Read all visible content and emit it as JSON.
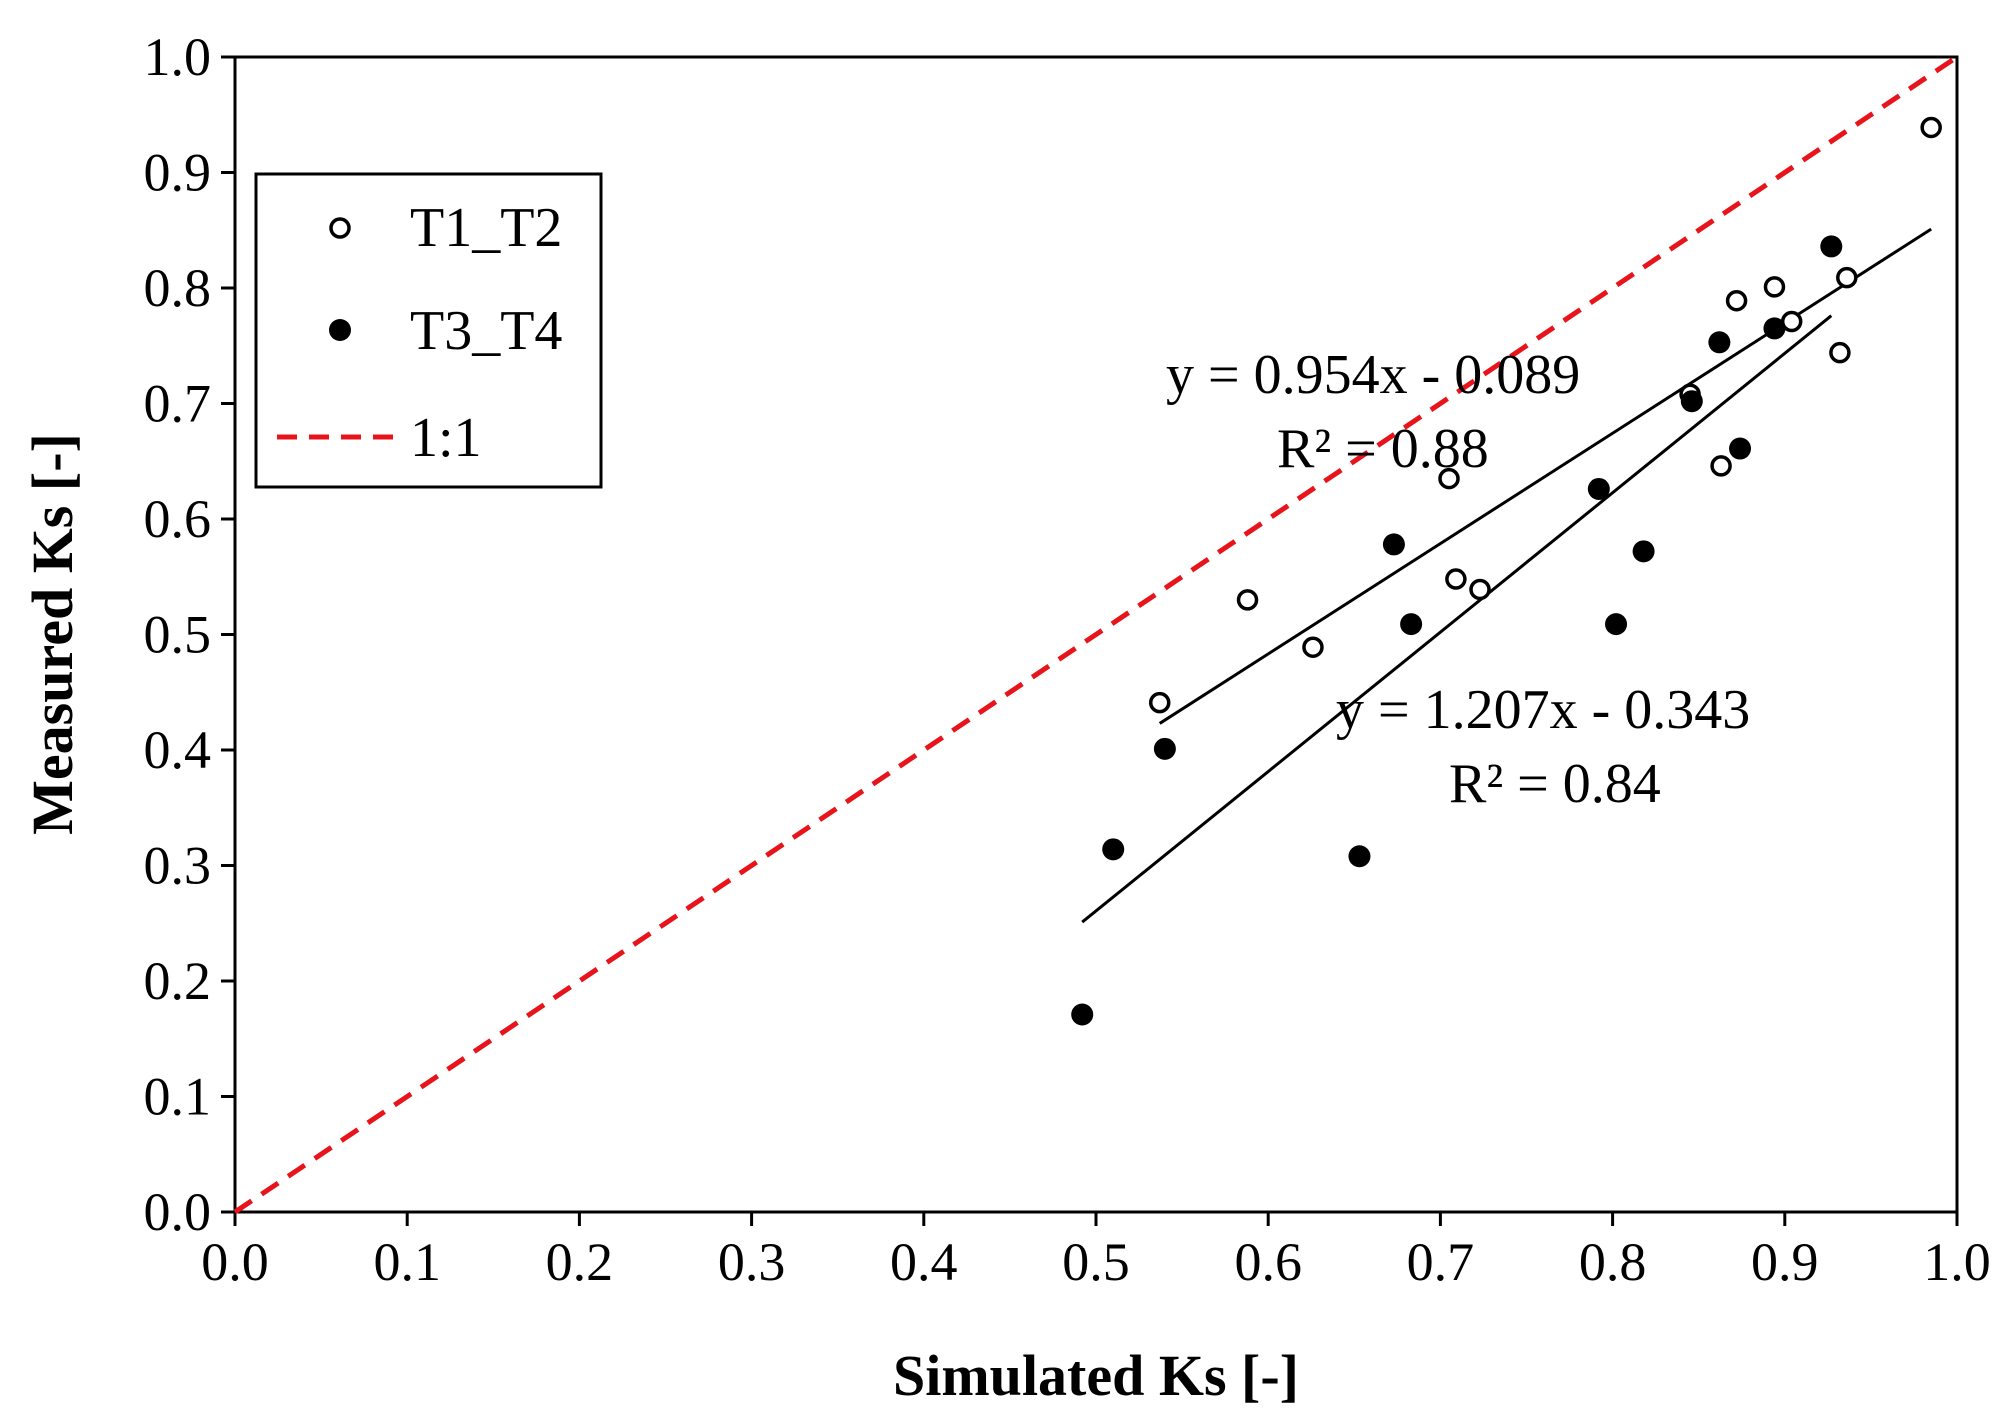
{
  "chart_data": {
    "type": "scatter",
    "title": "",
    "xlabel": "Simulated Ks [-]",
    "ylabel": "Measured Ks [-]",
    "xlim": [
      0.0,
      1.0
    ],
    "ylim": [
      0.0,
      1.0
    ],
    "xticks": [
      "0.0",
      "0.1",
      "0.2",
      "0.3",
      "0.4",
      "0.5",
      "0.6",
      "0.7",
      "0.8",
      "0.9",
      "1.0"
    ],
    "yticks": [
      "0.0",
      "0.1",
      "0.2",
      "0.3",
      "0.4",
      "0.5",
      "0.6",
      "0.7",
      "0.8",
      "0.9",
      "1.0"
    ],
    "grid": false,
    "legend_position": "top-left",
    "series": [
      {
        "name": "T1_T2",
        "marker": "open-circle",
        "points": [
          [
            0.537,
            0.441
          ],
          [
            0.588,
            0.53
          ],
          [
            0.626,
            0.489
          ],
          [
            0.705,
            0.635
          ],
          [
            0.709,
            0.548
          ],
          [
            0.723,
            0.539
          ],
          [
            0.845,
            0.708
          ],
          [
            0.863,
            0.646
          ],
          [
            0.872,
            0.789
          ],
          [
            0.894,
            0.801
          ],
          [
            0.904,
            0.771
          ],
          [
            0.932,
            0.744
          ],
          [
            0.936,
            0.809
          ],
          [
            0.985,
            0.939
          ]
        ]
      },
      {
        "name": "T3_T4",
        "marker": "filled-circle",
        "points": [
          [
            0.492,
            0.171
          ],
          [
            0.51,
            0.314
          ],
          [
            0.54,
            0.401
          ],
          [
            0.653,
            0.308
          ],
          [
            0.673,
            0.578
          ],
          [
            0.683,
            0.509
          ],
          [
            0.792,
            0.626
          ],
          [
            0.802,
            0.509
          ],
          [
            0.818,
            0.572
          ],
          [
            0.846,
            0.702
          ],
          [
            0.862,
            0.753
          ],
          [
            0.874,
            0.661
          ],
          [
            0.894,
            0.765
          ],
          [
            0.927,
            0.836
          ]
        ]
      }
    ],
    "reference_line": {
      "name": "1:1",
      "x": [
        0.0,
        1.0
      ],
      "y": [
        0.0,
        1.0
      ],
      "color": "#e8141b",
      "style": "dashed"
    },
    "trendlines": [
      {
        "series": "T1_T2",
        "x": [
          0.537,
          0.985
        ],
        "y": [
          0.423,
          0.851
        ],
        "equation": "y = 0.954x - 0.089",
        "r2": "R² = 0.88"
      },
      {
        "series": "T3_T4",
        "x": [
          0.492,
          0.927
        ],
        "y": [
          0.251,
          0.776
        ],
        "equation": "y = 1.207x - 0.343",
        "r2": "R² = 0.84"
      }
    ]
  }
}
